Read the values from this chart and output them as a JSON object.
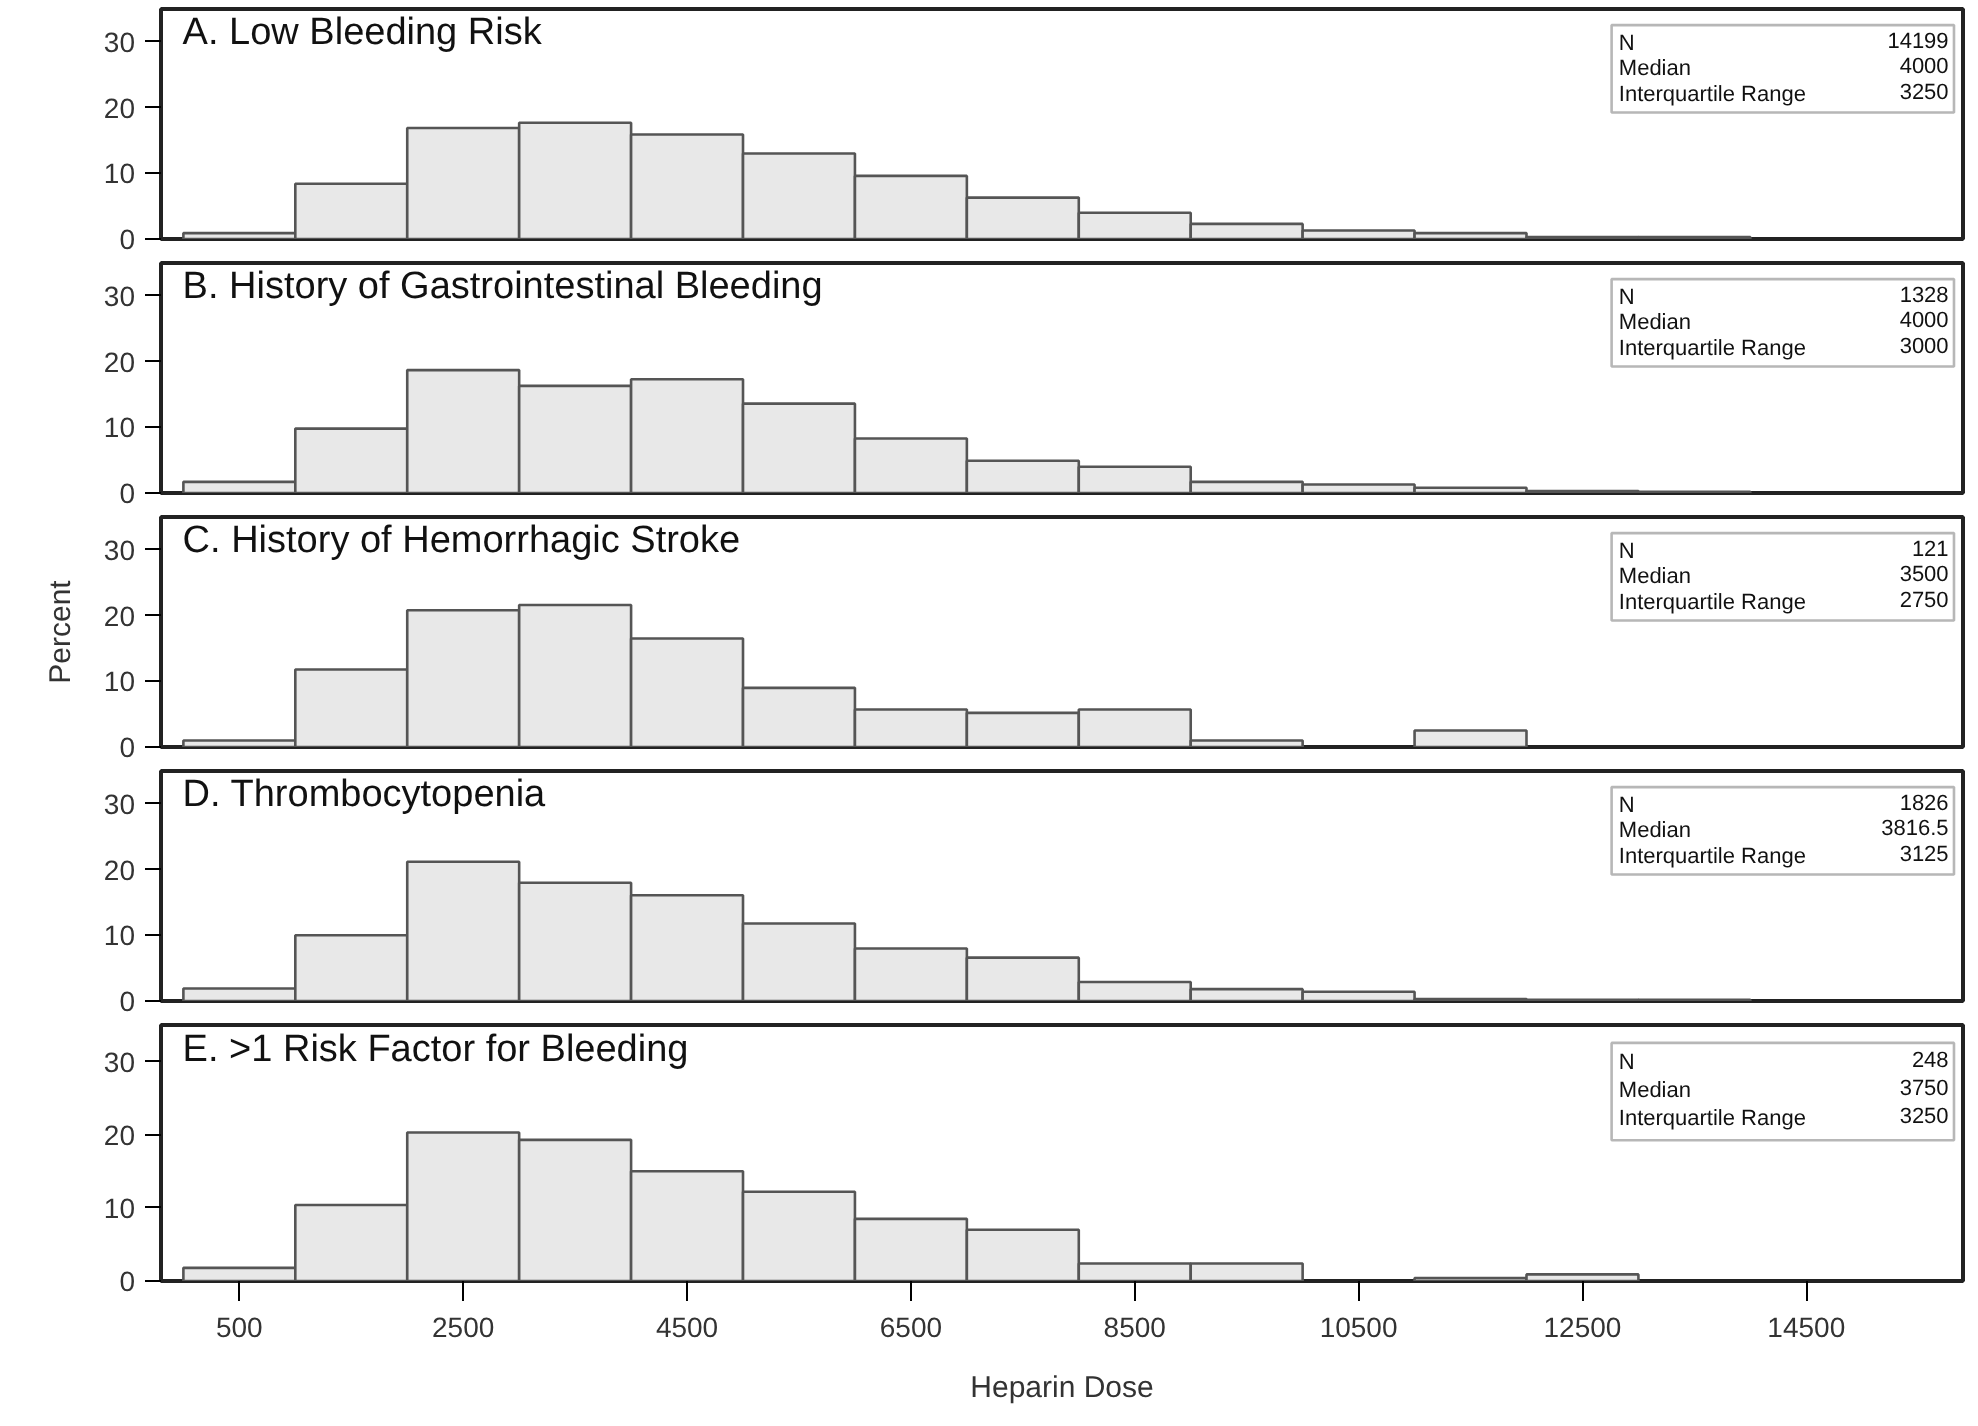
{
  "chart_data": [
    {
      "type": "histogram",
      "title": "A. Low Bleeding Risk",
      "color": "#e8e8e8",
      "bins": [
        0,
        1000,
        2000,
        3000,
        4000,
        5000,
        6000,
        7000,
        8000,
        9000,
        10000,
        11000,
        12000,
        13000,
        14000
      ],
      "values": [
        0.9,
        8.4,
        16.9,
        17.7,
        15.9,
        13.0,
        9.6,
        6.3,
        4.0,
        2.3,
        1.3,
        0.9,
        0.3,
        0.3
      ],
      "xlim": [
        -200,
        15900
      ],
      "ylim": [
        0,
        35
      ],
      "yticks": [
        0,
        10,
        20,
        30
      ],
      "tick_labels": "y",
      "annotations": [
        "N",
        "14199",
        "Median",
        "4000",
        "Interquartile Range",
        "3250"
      ]
    },
    {
      "type": "histogram",
      "title": "B. History of Gastrointestinal Bleeding",
      "color": "#e8e8e8",
      "bins": [
        0,
        1000,
        2000,
        3000,
        4000,
        5000,
        6000,
        7000,
        8000,
        9000,
        10000,
        11000,
        12000,
        13000,
        14000
      ],
      "values": [
        1.7,
        9.8,
        18.7,
        16.3,
        17.3,
        13.6,
        8.3,
        4.9,
        4.0,
        1.7,
        1.3,
        0.8,
        0.3,
        0.2
      ],
      "xlim": [
        -200,
        15900
      ],
      "ylim": [
        0,
        35
      ],
      "yticks": [
        0,
        10,
        20,
        30
      ],
      "tick_labels": "y",
      "annotations": [
        "N",
        "1328",
        "Median",
        "4000",
        "Interquartile Range",
        "3000"
      ]
    },
    {
      "type": "histogram",
      "title": "C. History of Hemorrhagic Stroke",
      "ylabel": "Percent",
      "color": "#e8e8e8",
      "bins": [
        0,
        1000,
        2000,
        3000,
        4000,
        5000,
        6000,
        7000,
        8000,
        9000,
        10000,
        11000,
        12000,
        13000,
        14000
      ],
      "values": [
        1.0,
        11.8,
        20.8,
        21.6,
        16.5,
        9.0,
        5.7,
        5.2,
        5.7,
        1.0,
        null,
        2.5,
        null,
        null
      ],
      "xlim": [
        -200,
        15900
      ],
      "ylim": [
        0,
        35
      ],
      "yticks": [
        0,
        10,
        20,
        30
      ],
      "tick_labels": "y",
      "annotations": [
        "N",
        "121",
        "Median",
        "3500",
        "Interquartile Range",
        "2750"
      ]
    },
    {
      "type": "histogram",
      "title": "D. Thrombocytopenia",
      "color": "#e8e8e8",
      "bins": [
        0,
        1000,
        2000,
        3000,
        4000,
        5000,
        6000,
        7000,
        8000,
        9000,
        10000,
        11000,
        12000,
        13000,
        14000
      ],
      "values": [
        1.9,
        10.0,
        21.2,
        18.0,
        16.1,
        11.8,
        8.0,
        6.6,
        2.9,
        1.8,
        1.4,
        0.3,
        0.2,
        0.2
      ],
      "xlim": [
        -200,
        15900
      ],
      "ylim": [
        0,
        35
      ],
      "yticks": [
        0,
        10,
        20,
        30
      ],
      "tick_labels": "y",
      "annotations": [
        "N",
        "1826",
        "Median",
        "3816.5",
        "Interquartile Range",
        "3125"
      ]
    },
    {
      "type": "histogram",
      "title": "E. >1 Risk Factor for Bleeding",
      "xlabel": "Heparin Dose",
      "color": "#e8e8e8",
      "bins": [
        0,
        1000,
        2000,
        3000,
        4000,
        5000,
        6000,
        7000,
        8000,
        9000,
        10000,
        11000,
        12000,
        13000,
        14000
      ],
      "values": [
        1.8,
        10.4,
        20.3,
        19.3,
        15.0,
        12.2,
        8.5,
        7.0,
        2.4,
        2.4,
        null,
        0.4,
        0.9,
        null
      ],
      "xlim": [
        -200,
        15900
      ],
      "ylim": [
        0,
        35
      ],
      "yticks": [
        0,
        10,
        20,
        30
      ],
      "xticks": [
        500,
        2500,
        4500,
        6500,
        8500,
        10500,
        12500,
        14500
      ],
      "annotations": [
        "N",
        "248",
        "Median",
        "3750",
        "Interquartile Range",
        "3250"
      ]
    }
  ]
}
